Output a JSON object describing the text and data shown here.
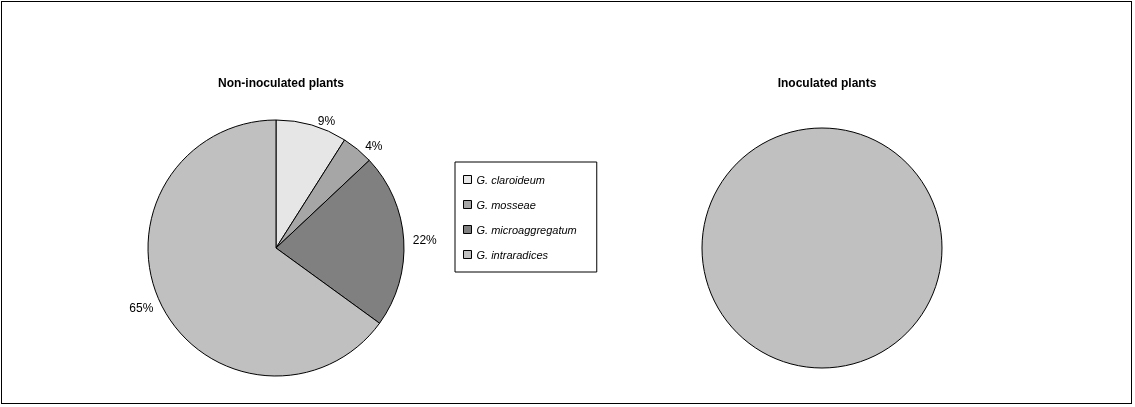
{
  "chart_data": [
    {
      "type": "pie",
      "title": "Non-inoculated plants",
      "categories": [
        "G. claroideum",
        "G. mosseae",
        "G. microaggregatum",
        "G. intraradices"
      ],
      "values": [
        9,
        4,
        22,
        65
      ],
      "value_labels": [
        "9%",
        "4%",
        "22%",
        "65%"
      ],
      "colors": [
        "#e6e6e6",
        "#a6a6a6",
        "#808080",
        "#c0c0c0"
      ],
      "legend": "right"
    },
    {
      "type": "pie",
      "title": "Inoculated plants",
      "categories": [
        null,
        null,
        null,
        null
      ],
      "values": [
        0,
        0,
        0,
        100
      ],
      "colors": [
        "#e6e6e6",
        "#a6a6a6",
        "#808080",
        "#c0c0c0"
      ]
    }
  ]
}
